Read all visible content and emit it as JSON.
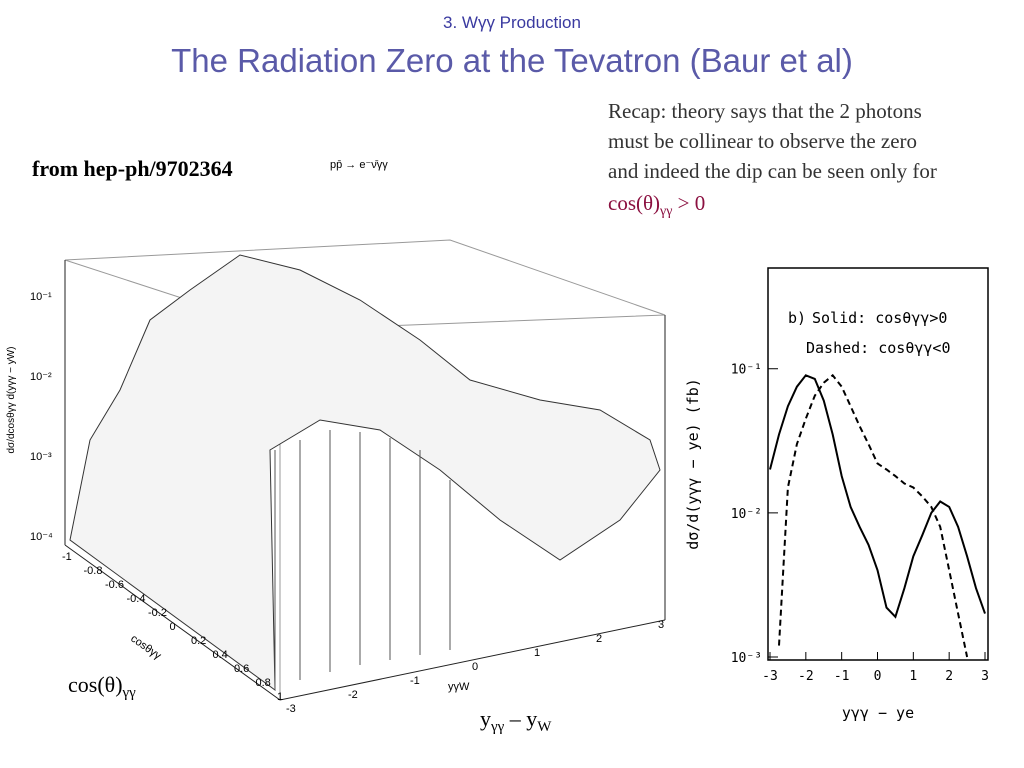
{
  "header": {
    "subtitle": "3. Wγγ Production",
    "title": "The Radiation Zero at the Tevatron (Baur et al)"
  },
  "source": "from hep-ph/9702364",
  "recap": {
    "lines": [
      "Recap: theory says that the 2 photons",
      "must be collinear to observe the zero",
      "and indeed the dip can be seen only for"
    ],
    "cond": {
      "base": "cos(θ)",
      "sub": "γγ",
      "rest": " > 0"
    }
  },
  "lego_plot": {
    "process": "pp̄ → e⁻ν̄γγ",
    "z_label": "dσ/dcosθγγ d(yγγ − yW)",
    "cos_axis": "cosθγγ",
    "y_axis": "yγW",
    "cos_ticks": [
      -1,
      -0.8,
      -0.6,
      -0.4,
      -0.2,
      0,
      0.2,
      0.4,
      0.6,
      0.8,
      1
    ],
    "y_ticks": [
      -3,
      -2,
      -1,
      0,
      1,
      2,
      3
    ],
    "z_ticks": [
      "10⁻¹",
      "10⁻²",
      "10⁻³",
      "10⁻⁴"
    ]
  },
  "labels": {
    "cos": {
      "base": "cos(θ)",
      "sub": "γγ"
    },
    "y": {
      "a": "y",
      "asub": "γγ",
      "mid": " – y",
      "bsub": "W"
    }
  },
  "chart_data": {
    "type": "line",
    "panel": "b)",
    "ylabel": "dσ/d(yγγ − ye) (fb)",
    "xlabel": "yγγ − ye",
    "x": [
      -3,
      -2.75,
      -2.5,
      -2.25,
      -2,
      -1.75,
      -1.5,
      -1.25,
      -1,
      -0.75,
      -0.5,
      -0.25,
      0,
      0.25,
      0.5,
      0.75,
      1,
      1.25,
      1.5,
      1.75,
      2,
      2.25,
      2.5,
      2.75,
      3
    ],
    "series": [
      {
        "name": "Solid: cosθγγ>0",
        "color": "#000000",
        "dash": false,
        "values": [
          0.02,
          0.035,
          0.055,
          0.075,
          0.09,
          0.085,
          0.06,
          0.035,
          0.018,
          0.011,
          0.008,
          0.006,
          0.004,
          0.0022,
          0.0019,
          0.003,
          0.005,
          0.007,
          0.01,
          0.012,
          0.011,
          0.008,
          0.005,
          0.003,
          0.002
        ]
      },
      {
        "name": "Dashed: cosθγγ<0",
        "color": "#000000",
        "dash": true,
        "values": [
          null,
          0.0012,
          0.015,
          0.03,
          0.045,
          0.065,
          0.08,
          0.09,
          0.075,
          0.055,
          0.04,
          0.03,
          0.022,
          0.02,
          0.018,
          0.016,
          0.015,
          0.013,
          0.011,
          0.008,
          0.004,
          0.002,
          0.001,
          null,
          null
        ]
      }
    ],
    "xlim": [
      -3,
      3
    ],
    "xticks": [
      -3,
      -2,
      -1,
      0,
      1,
      2,
      3
    ],
    "ylim": [
      0.001,
      0.5
    ],
    "log_y": true,
    "yticks": [
      {
        "value": 0.001,
        "label": "10⁻³"
      },
      {
        "value": 0.01,
        "label": "10⁻²"
      },
      {
        "value": 0.1,
        "label": "10⁻¹"
      }
    ]
  }
}
